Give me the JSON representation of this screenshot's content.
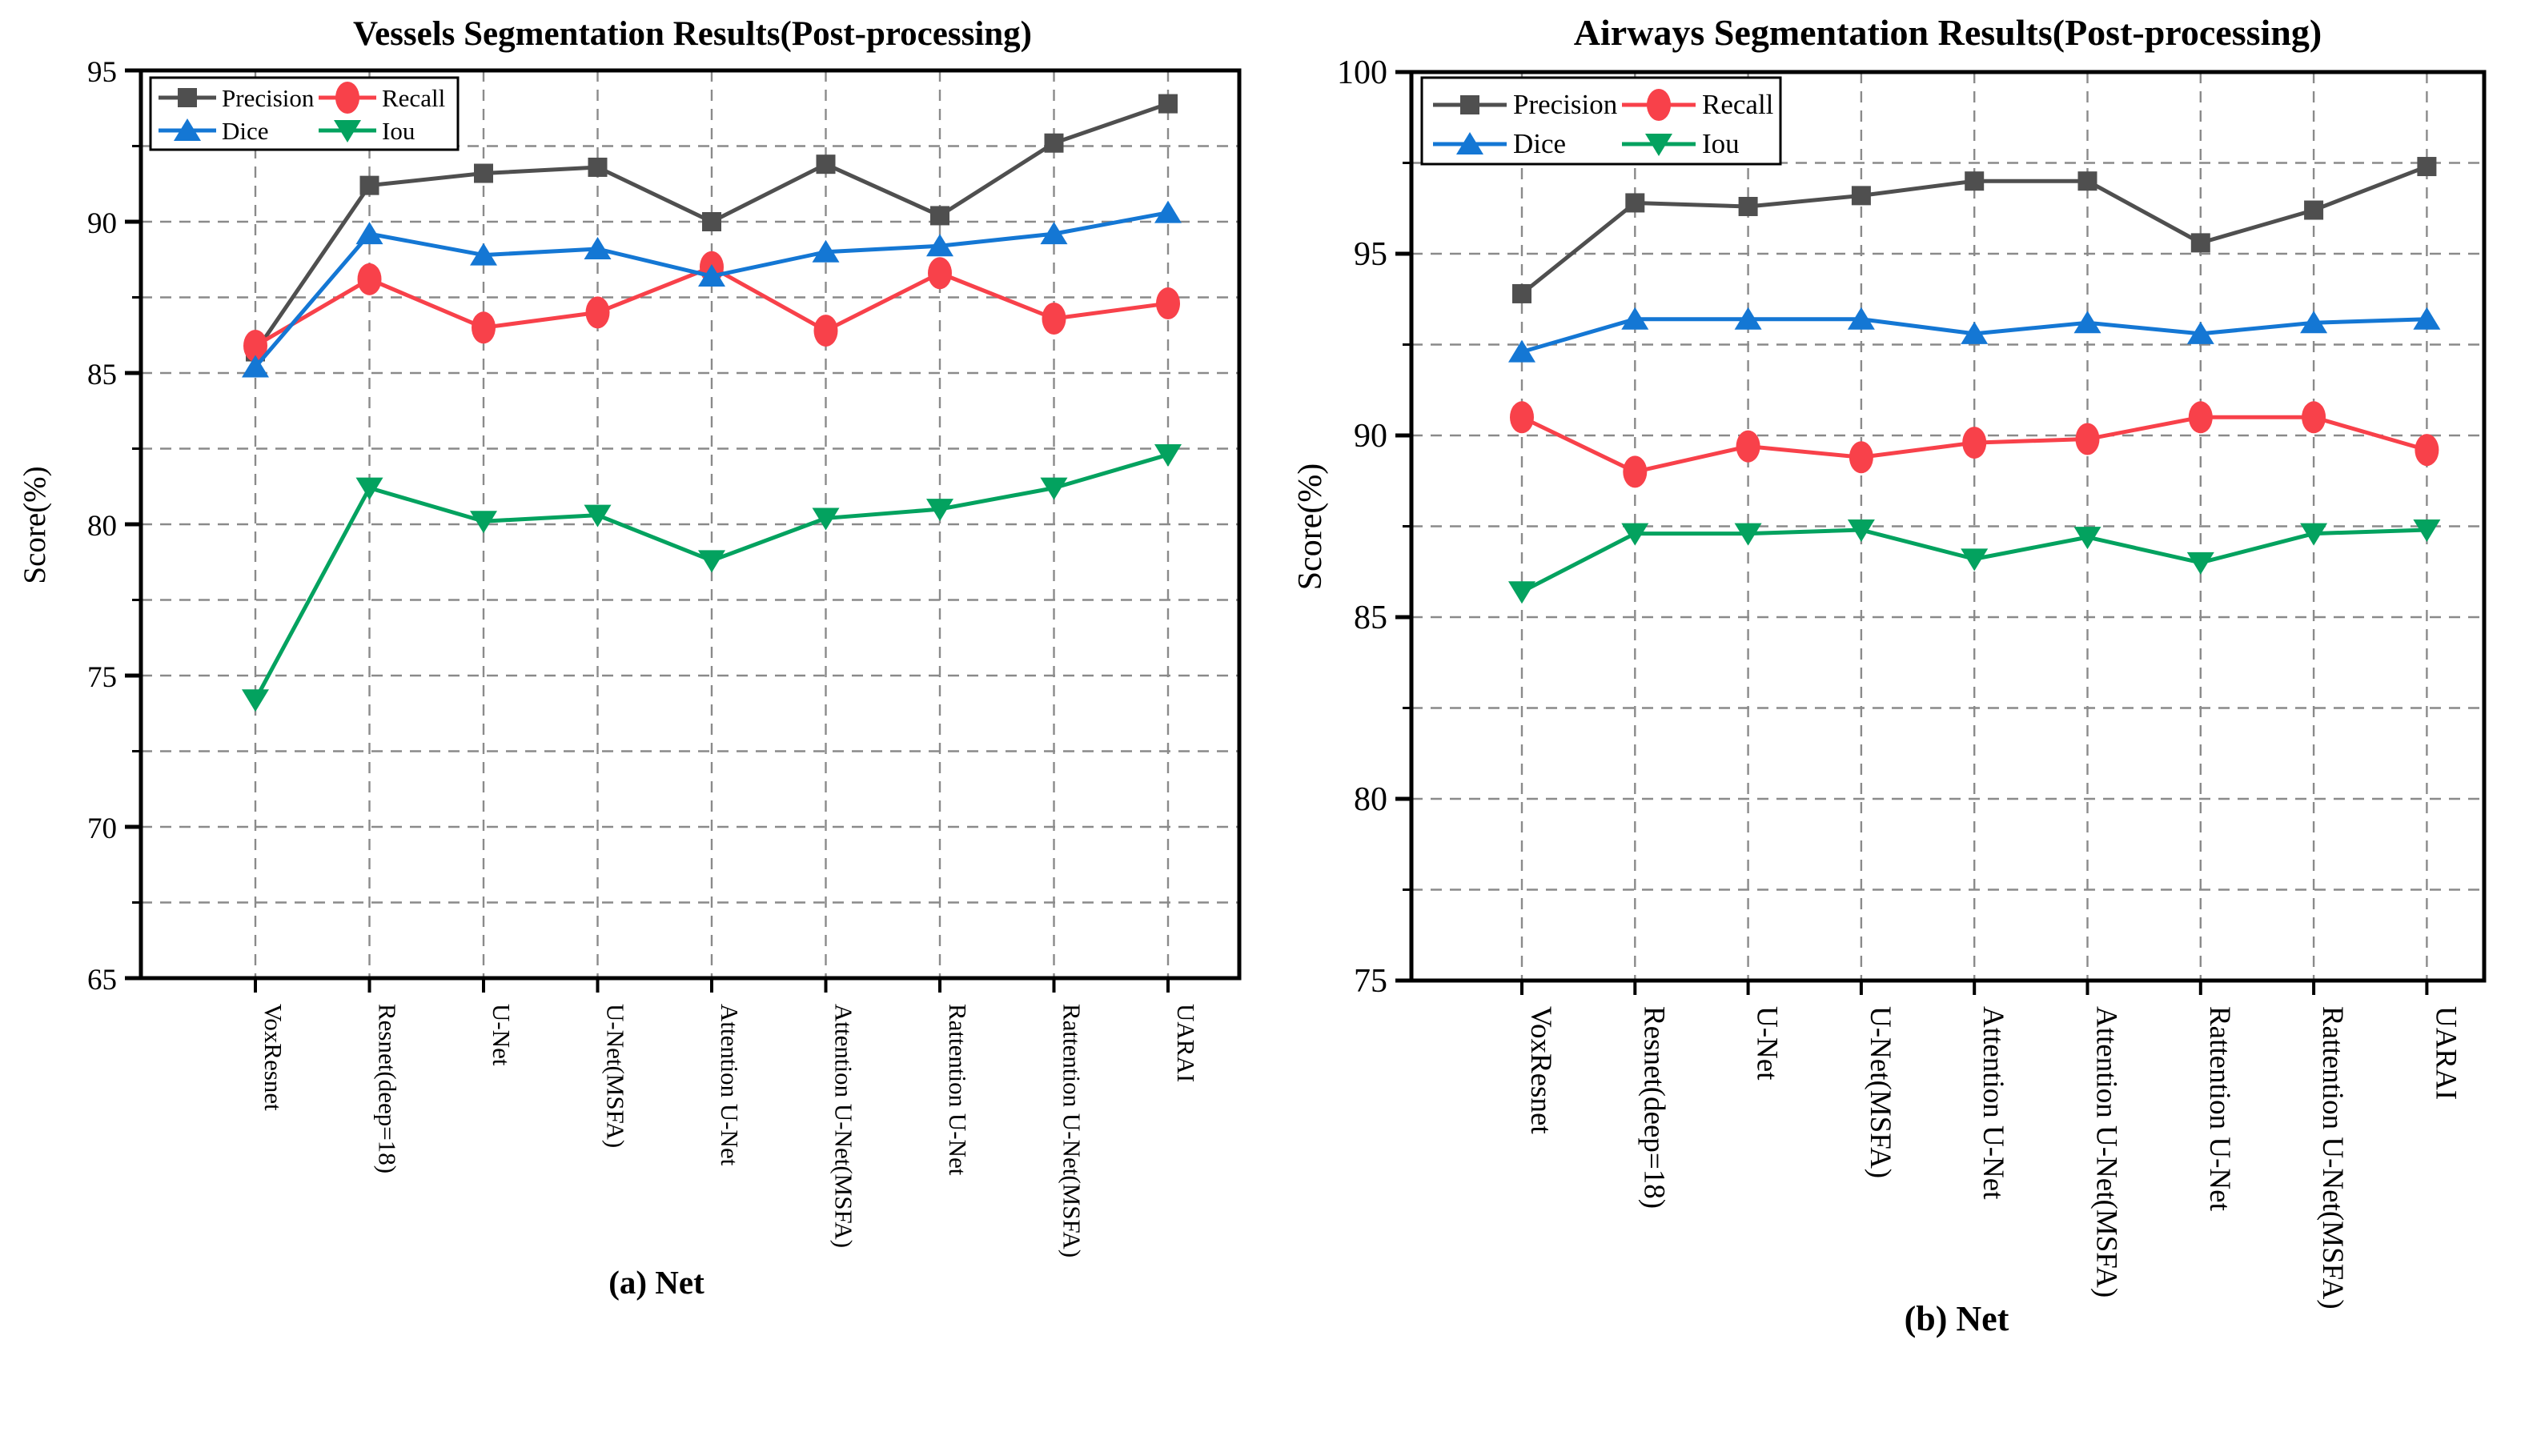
{
  "page": {
    "background": "#ffffff",
    "grid_color": "#8a8a8a",
    "axis_color": "#000000"
  },
  "chart_data": [
    {
      "id": "a",
      "type": "line",
      "title": "Vessels Segmentation Results(Post-processing)",
      "xlabel": "(a) Net",
      "ylabel": "Score(%)",
      "ylim": [
        65,
        95
      ],
      "yticks": [
        65,
        70,
        75,
        80,
        85,
        90,
        95
      ],
      "yminor_step": 2.5,
      "grid": "dashed",
      "legend_position": "top-left",
      "legend_entries": [
        "Precision",
        "Recall",
        "Dice",
        "Iou"
      ],
      "categories": [
        "VoxResnet",
        "Resnet(deep=18)",
        "U-Net",
        "U-Net(MSFA)",
        "Attention U-Net",
        "Attention U-Net(MSFA)",
        "Rattention U-Net",
        "Rattention U-Net(MSFA)",
        "UARAI"
      ],
      "series": [
        {
          "name": "Precision",
          "color": "#4f4f4f",
          "marker": "square",
          "values": [
            85.7,
            91.2,
            91.6,
            91.8,
            90.0,
            91.9,
            90.2,
            92.6,
            93.9
          ]
        },
        {
          "name": "Recall",
          "color": "#f8414a",
          "marker": "circle",
          "values": [
            85.9,
            88.1,
            86.5,
            87.0,
            88.5,
            86.4,
            88.3,
            86.8,
            87.3
          ]
        },
        {
          "name": "Dice",
          "color": "#1477d4",
          "marker": "triangle-up",
          "values": [
            85.2,
            89.6,
            88.9,
            89.1,
            88.2,
            89.0,
            89.2,
            89.6,
            90.3
          ]
        },
        {
          "name": "Iou",
          "color": "#03a25f",
          "marker": "triangle-down",
          "values": [
            74.2,
            81.2,
            80.1,
            80.3,
            78.8,
            80.2,
            80.5,
            81.2,
            82.3
          ]
        }
      ]
    },
    {
      "id": "b",
      "type": "line",
      "title": "Airways Segmentation Results(Post-processing)",
      "xlabel": "(b) Net",
      "ylabel": "Score(%)",
      "ylim": [
        75,
        100
      ],
      "yticks": [
        75,
        80,
        85,
        90,
        95,
        100
      ],
      "yminor_step": 2.5,
      "grid": "dashed",
      "legend_position": "top-left",
      "legend_entries": [
        "Precision",
        "Recall",
        "Dice",
        "Iou"
      ],
      "categories": [
        "VoxResnet",
        "Resnet(deep=18)",
        "U-Net",
        "U-Net(MSFA)",
        "Attention U-Net",
        "Attention U-Net(MSFA)",
        "Rattention U-Net",
        "Rattention U-Net(MSFA)",
        "UARAI"
      ],
      "series": [
        {
          "name": "Precision",
          "color": "#4f4f4f",
          "marker": "square",
          "values": [
            93.9,
            96.4,
            96.3,
            96.6,
            97.0,
            97.0,
            95.3,
            96.2,
            97.4
          ]
        },
        {
          "name": "Recall",
          "color": "#f8414a",
          "marker": "circle",
          "values": [
            90.5,
            89.0,
            89.7,
            89.4,
            89.8,
            89.9,
            90.5,
            90.5,
            89.6
          ]
        },
        {
          "name": "Dice",
          "color": "#1477d4",
          "marker": "triangle-up",
          "values": [
            92.3,
            93.2,
            93.2,
            93.2,
            92.8,
            93.1,
            92.8,
            93.1,
            93.2
          ]
        },
        {
          "name": "Iou",
          "color": "#03a25f",
          "marker": "triangle-down",
          "values": [
            85.7,
            87.3,
            87.3,
            87.4,
            86.6,
            87.2,
            86.5,
            87.3,
            87.4
          ]
        }
      ]
    }
  ]
}
